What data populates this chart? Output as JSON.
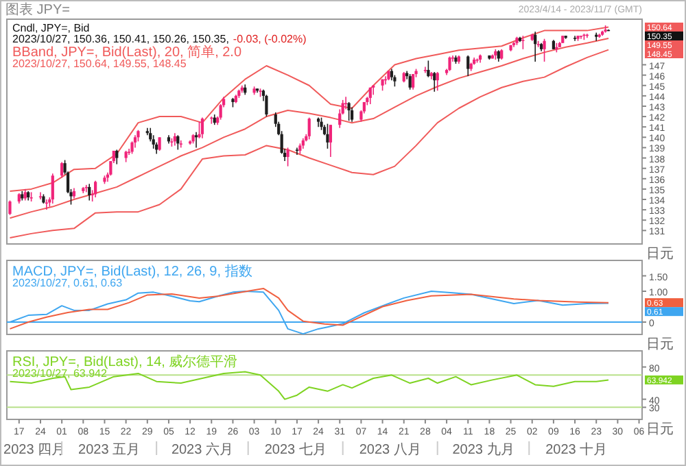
{
  "chart_data": [
    {
      "type": "candlestick",
      "title": "Cndl, JPY=, Bid",
      "subtitle": "2023/10/27, 150.36, 150.41, 150.26, 150.35,",
      "tick_labels": "y",
      "xlim": [
        "2023-04-13",
        "2023-11-07"
      ],
      "ylim": [
        129.7,
        151.4
      ],
      "yticks": [
        131,
        132,
        133,
        134,
        135,
        136,
        137,
        138,
        139,
        140,
        141,
        142,
        143,
        144,
        145,
        146,
        147
      ],
      "x": [
        "2023-04-14",
        "2023-04-17",
        "2023-04-18",
        "2023-04-19",
        "2023-04-20",
        "2023-04-21",
        "2023-04-24",
        "2023-04-25",
        "2023-04-26",
        "2023-04-27",
        "2023-04-28",
        "2023-05-01",
        "2023-05-02",
        "2023-05-03",
        "2023-05-04",
        "2023-05-05",
        "2023-05-08",
        "2023-05-09",
        "2023-05-10",
        "2023-05-11",
        "2023-05-12",
        "2023-05-15",
        "2023-05-16",
        "2023-05-17",
        "2023-05-18",
        "2023-05-19",
        "2023-05-22",
        "2023-05-23",
        "2023-05-24",
        "2023-05-25",
        "2023-05-26",
        "2023-05-29",
        "2023-05-30",
        "2023-05-31",
        "2023-06-01",
        "2023-06-02",
        "2023-06-05",
        "2023-06-06",
        "2023-06-07",
        "2023-06-08",
        "2023-06-09",
        "2023-06-12",
        "2023-06-13",
        "2023-06-14",
        "2023-06-15",
        "2023-06-16",
        "2023-06-19",
        "2023-06-20",
        "2023-06-21",
        "2023-06-22",
        "2023-06-23",
        "2023-06-26",
        "2023-06-27",
        "2023-06-28",
        "2023-06-29",
        "2023-06-30",
        "2023-07-03",
        "2023-07-04",
        "2023-07-05",
        "2023-07-06",
        "2023-07-07",
        "2023-07-10",
        "2023-07-11",
        "2023-07-12",
        "2023-07-13",
        "2023-07-14",
        "2023-07-17",
        "2023-07-18",
        "2023-07-19",
        "2023-07-20",
        "2023-07-21",
        "2023-07-24",
        "2023-07-25",
        "2023-07-26",
        "2023-07-27",
        "2023-07-28",
        "2023-07-31",
        "2023-08-01",
        "2023-08-02",
        "2023-08-03",
        "2023-08-04",
        "2023-08-07",
        "2023-08-08",
        "2023-08-09",
        "2023-08-10",
        "2023-08-11",
        "2023-08-14",
        "2023-08-15",
        "2023-08-16",
        "2023-08-17",
        "2023-08-18",
        "2023-08-21",
        "2023-08-22",
        "2023-08-23",
        "2023-08-24",
        "2023-08-25",
        "2023-08-28",
        "2023-08-29",
        "2023-08-30",
        "2023-08-31",
        "2023-09-01",
        "2023-09-04",
        "2023-09-05",
        "2023-09-06",
        "2023-09-07",
        "2023-09-08",
        "2023-09-11",
        "2023-09-12",
        "2023-09-13",
        "2023-09-14",
        "2023-09-15",
        "2023-09-18",
        "2023-09-19",
        "2023-09-20",
        "2023-09-21",
        "2023-09-22",
        "2023-09-25",
        "2023-09-26",
        "2023-09-27",
        "2023-09-28",
        "2023-09-29",
        "2023-10-02",
        "2023-10-03",
        "2023-10-04",
        "2023-10-05",
        "2023-10-06",
        "2023-10-09",
        "2023-10-10",
        "2023-10-11",
        "2023-10-12",
        "2023-10-13",
        "2023-10-16",
        "2023-10-17",
        "2023-10-18",
        "2023-10-19",
        "2023-10-20",
        "2023-10-23",
        "2023-10-24",
        "2023-10-25",
        "2023-10-26",
        "2023-10-27"
      ],
      "ohlc": [
        [
          132.6,
          133.9,
          132.5,
          133.8
        ],
        [
          133.8,
          134.6,
          133.6,
          134.5
        ],
        [
          134.5,
          134.8,
          133.9,
          134.1
        ],
        [
          134.1,
          135.0,
          133.9,
          134.7
        ],
        [
          134.7,
          134.8,
          133.9,
          134.2
        ],
        [
          134.2,
          134.7,
          133.8,
          134.2
        ],
        [
          134.2,
          134.7,
          134.0,
          134.3
        ],
        [
          134.3,
          134.5,
          133.6,
          133.7
        ],
        [
          133.7,
          134.0,
          133.0,
          133.7
        ],
        [
          133.7,
          134.2,
          133.3,
          134.0
        ],
        [
          134.0,
          136.5,
          133.6,
          136.3
        ],
        [
          136.3,
          137.6,
          136.1,
          137.5
        ],
        [
          137.5,
          137.8,
          136.4,
          136.6
        ],
        [
          136.6,
          136.7,
          134.6,
          134.7
        ],
        [
          134.7,
          135.0,
          133.5,
          134.3
        ],
        [
          134.3,
          135.1,
          134.1,
          134.8
        ],
        [
          134.8,
          135.2,
          134.6,
          135.1
        ],
        [
          135.1,
          135.4,
          134.7,
          135.2
        ],
        [
          135.2,
          135.5,
          133.9,
          134.4
        ],
        [
          134.4,
          134.9,
          133.8,
          134.5
        ],
        [
          134.5,
          135.8,
          134.2,
          135.7
        ],
        [
          135.7,
          136.3,
          135.5,
          136.1
        ],
        [
          136.1,
          136.6,
          135.7,
          136.4
        ],
        [
          136.4,
          137.7,
          136.3,
          137.7
        ],
        [
          137.7,
          138.7,
          137.5,
          138.7
        ],
        [
          138.7,
          138.8,
          137.4,
          138.0
        ],
        [
          138.0,
          138.7,
          137.6,
          138.6
        ],
        [
          138.6,
          138.9,
          138.3,
          138.6
        ],
        [
          138.6,
          139.6,
          138.4,
          139.5
        ],
        [
          139.5,
          140.2,
          139.0,
          140.0
        ],
        [
          140.0,
          140.7,
          139.6,
          140.6
        ],
        [
          140.6,
          140.9,
          140.2,
          140.4
        ],
        [
          140.4,
          140.9,
          139.6,
          139.8
        ],
        [
          139.8,
          140.2,
          138.9,
          139.3
        ],
        [
          139.3,
          139.5,
          138.4,
          138.8
        ],
        [
          138.8,
          140.0,
          138.7,
          140.0
        ],
        [
          140.0,
          140.2,
          139.4,
          139.6
        ],
        [
          139.6,
          139.9,
          139.1,
          139.6
        ],
        [
          139.6,
          140.4,
          139.2,
          140.1
        ],
        [
          140.1,
          140.2,
          138.8,
          139.4
        ],
        [
          139.4,
          139.7,
          139.0,
          139.4
        ],
        [
          139.4,
          139.7,
          139.3,
          139.6
        ],
        [
          139.6,
          140.3,
          139.4,
          140.2
        ],
        [
          140.2,
          140.5,
          139.0,
          140.0
        ],
        [
          140.0,
          141.5,
          139.9,
          140.3
        ],
        [
          140.3,
          141.9,
          139.9,
          141.8
        ],
        [
          141.8,
          142.0,
          141.3,
          141.9
        ],
        [
          141.9,
          142.2,
          141.2,
          141.4
        ],
        [
          141.4,
          142.0,
          141.2,
          141.9
        ],
        [
          141.9,
          143.2,
          141.7,
          143.1
        ],
        [
          143.1,
          143.9,
          142.9,
          143.7
        ],
        [
          143.7,
          143.8,
          142.9,
          143.4
        ],
        [
          143.4,
          144.1,
          143.3,
          144.0
        ],
        [
          144.0,
          144.6,
          143.8,
          144.5
        ],
        [
          144.5,
          145.0,
          144.3,
          144.8
        ],
        [
          144.8,
          145.1,
          144.1,
          144.3
        ],
        [
          144.3,
          144.9,
          144.1,
          144.7
        ],
        [
          144.7,
          144.7,
          144.3,
          144.5
        ],
        [
          144.5,
          144.7,
          143.9,
          144.5
        ],
        [
          144.5,
          144.6,
          143.5,
          144.0
        ],
        [
          144.0,
          144.1,
          142.0,
          142.2
        ],
        [
          142.2,
          142.4,
          141.0,
          141.3
        ],
        [
          141.3,
          141.5,
          140.2,
          140.3
        ],
        [
          140.3,
          140.6,
          138.4,
          138.5
        ],
        [
          138.5,
          138.9,
          137.7,
          138.1
        ],
        [
          138.1,
          139.0,
          137.2,
          138.8
        ],
        [
          138.8,
          139.0,
          138.3,
          138.7
        ],
        [
          138.7,
          139.4,
          138.4,
          139.2
        ],
        [
          139.2,
          139.9,
          138.9,
          139.7
        ],
        [
          139.7,
          140.3,
          139.6,
          140.1
        ],
        [
          140.1,
          141.9,
          139.8,
          141.8
        ],
        [
          141.8,
          141.9,
          141.0,
          141.5
        ],
        [
          141.5,
          141.9,
          140.7,
          141.0
        ],
        [
          141.0,
          141.2,
          140.2,
          140.3
        ],
        [
          140.3,
          141.3,
          138.9,
          139.5
        ],
        [
          139.5,
          141.2,
          138.1,
          141.2
        ],
        [
          141.2,
          142.7,
          140.9,
          142.3
        ],
        [
          142.3,
          143.6,
          142.2,
          143.3
        ],
        [
          143.3,
          143.9,
          142.7,
          143.3
        ],
        [
          143.3,
          143.4,
          141.6,
          142.6
        ],
        [
          142.6,
          142.9,
          141.5,
          141.7
        ],
        [
          141.7,
          142.6,
          141.5,
          142.5
        ],
        [
          142.5,
          143.4,
          142.3,
          143.4
        ],
        [
          143.4,
          143.9,
          143.1,
          143.8
        ],
        [
          143.8,
          144.8,
          143.2,
          144.8
        ],
        [
          144.8,
          145.0,
          144.1,
          145.0
        ],
        [
          145.0,
          145.6,
          144.5,
          145.6
        ],
        [
          145.6,
          145.9,
          145.1,
          145.6
        ],
        [
          145.6,
          146.4,
          145.5,
          146.4
        ],
        [
          146.4,
          146.6,
          145.5,
          145.8
        ],
        [
          145.8,
          146.0,
          144.9,
          145.4
        ],
        [
          145.4,
          146.3,
          145.3,
          146.2
        ],
        [
          146.2,
          146.4,
          145.6,
          145.9
        ],
        [
          145.9,
          146.1,
          144.6,
          144.8
        ],
        [
          144.8,
          146.1,
          144.6,
          146.1
        ],
        [
          146.1,
          146.6,
          145.8,
          146.4
        ],
        [
          146.4,
          146.8,
          146.2,
          146.5
        ],
        [
          146.5,
          147.4,
          145.8,
          145.9
        ],
        [
          145.9,
          146.3,
          145.6,
          146.2
        ],
        [
          146.2,
          146.3,
          144.4,
          145.5
        ],
        [
          145.5,
          146.3,
          144.5,
          146.2
        ],
        [
          146.2,
          146.6,
          146.0,
          146.5
        ],
        [
          146.5,
          147.8,
          146.4,
          147.7
        ],
        [
          147.7,
          147.9,
          147.3,
          147.7
        ],
        [
          147.7,
          147.9,
          147.1,
          147.3
        ],
        [
          147.3,
          147.9,
          147.1,
          147.8
        ],
        [
          147.8,
          147.9,
          145.9,
          146.6
        ],
        [
          146.6,
          147.2,
          146.4,
          147.1
        ],
        [
          147.1,
          147.7,
          147.0,
          147.5
        ],
        [
          147.5,
          147.6,
          147.2,
          147.5
        ],
        [
          147.5,
          148.0,
          147.2,
          147.9
        ],
        [
          147.9,
          147.9,
          147.5,
          147.6
        ],
        [
          147.6,
          148.0,
          147.6,
          147.9
        ],
        [
          147.9,
          148.5,
          147.5,
          148.3
        ],
        [
          148.3,
          148.4,
          147.3,
          147.6
        ],
        [
          147.6,
          148.5,
          147.5,
          148.4
        ],
        [
          148.4,
          148.9,
          148.3,
          148.9
        ],
        [
          148.9,
          149.2,
          148.7,
          149.1
        ],
        [
          149.1,
          149.7,
          148.9,
          149.6
        ],
        [
          149.6,
          149.7,
          149.2,
          149.3
        ],
        [
          149.3,
          149.8,
          148.5,
          149.4
        ],
        [
          149.4,
          150.0,
          149.3,
          149.9
        ],
        [
          149.9,
          150.2,
          147.3,
          149.0
        ],
        [
          149.0,
          149.3,
          148.7,
          149.0
        ],
        [
          149.0,
          149.1,
          148.3,
          148.5
        ],
        [
          148.5,
          149.5,
          147.3,
          149.3
        ],
        [
          149.3,
          149.4,
          148.5,
          148.5
        ],
        [
          148.5,
          149.1,
          148.2,
          148.7
        ],
        [
          148.7,
          149.2,
          148.7,
          149.1
        ],
        [
          149.1,
          149.8,
          149.1,
          149.8
        ],
        [
          149.8,
          149.8,
          149.5,
          149.6
        ],
        [
          149.6,
          149.8,
          149.3,
          149.5
        ],
        [
          149.5,
          149.8,
          149.3,
          149.8
        ],
        [
          149.8,
          149.8,
          149.5,
          149.8
        ],
        [
          149.8,
          150.0,
          149.4,
          149.9
        ],
        [
          149.9,
          150.0,
          149.6,
          149.9
        ],
        [
          149.9,
          150.1,
          149.3,
          149.7
        ],
        [
          149.7,
          150.0,
          149.6,
          149.9
        ],
        [
          149.9,
          150.3,
          149.8,
          150.2
        ],
        [
          150.2,
          150.8,
          150.1,
          150.4
        ],
        [
          150.36,
          150.41,
          150.26,
          150.35
        ]
      ],
      "series": [
        {
          "type": "line",
          "color": "#f05a5a",
          "x": [
            "2023-04-14",
            "2023-04-21",
            "2023-04-28",
            "2023-05-05",
            "2023-05-12",
            "2023-05-19",
            "2023-05-26",
            "2023-06-02",
            "2023-06-09",
            "2023-06-16",
            "2023-06-23",
            "2023-06-30",
            "2023-07-07",
            "2023-07-14",
            "2023-07-21",
            "2023-07-28",
            "2023-08-04",
            "2023-08-11",
            "2023-08-18",
            "2023-08-25",
            "2023-09-01",
            "2023-09-08",
            "2023-09-15",
            "2023-09-22",
            "2023-09-29",
            "2023-10-06",
            "2023-10-13",
            "2023-10-20",
            "2023-10-27"
          ],
          "values": [
            134.8,
            135.0,
            135.6,
            136.9,
            137.0,
            138.4,
            141.4,
            142.0,
            142.0,
            141.4,
            143.8,
            145.6,
            146.9,
            146.0,
            145.0,
            143.2,
            142.8,
            145.0,
            147.0,
            147.6,
            148.0,
            148.4,
            148.6,
            148.8,
            149.6,
            150.3,
            150.3,
            150.3,
            150.64
          ]
        },
        {
          "type": "line",
          "name": "BBand, JPY=, Bid(Last), 20, 简单, 2.0",
          "color": "#f05a5a",
          "x": [
            "2023-04-14",
            "2023-04-21",
            "2023-04-28",
            "2023-05-05",
            "2023-05-12",
            "2023-05-19",
            "2023-05-26",
            "2023-06-02",
            "2023-06-09",
            "2023-06-16",
            "2023-06-23",
            "2023-06-30",
            "2023-07-07",
            "2023-07-14",
            "2023-07-21",
            "2023-07-28",
            "2023-08-04",
            "2023-08-11",
            "2023-08-18",
            "2023-08-25",
            "2023-09-01",
            "2023-09-08",
            "2023-09-15",
            "2023-09-22",
            "2023-09-29",
            "2023-10-06",
            "2023-10-13",
            "2023-10-20",
            "2023-10-27"
          ],
          "values": [
            132.2,
            132.8,
            133.3,
            134.0,
            134.6,
            135.2,
            136.2,
            137.2,
            138.2,
            139.0,
            140.0,
            140.8,
            142.0,
            142.6,
            142.3,
            141.9,
            141.4,
            141.8,
            142.9,
            144.0,
            144.9,
            145.7,
            146.3,
            146.9,
            147.6,
            148.2,
            148.7,
            149.1,
            149.55
          ]
        },
        {
          "type": "line",
          "color": "#f05a5a",
          "x": [
            "2023-04-14",
            "2023-04-21",
            "2023-04-28",
            "2023-05-05",
            "2023-05-12",
            "2023-05-19",
            "2023-05-26",
            "2023-06-02",
            "2023-06-09",
            "2023-06-16",
            "2023-06-23",
            "2023-06-30",
            "2023-07-07",
            "2023-07-14",
            "2023-07-21",
            "2023-07-28",
            "2023-08-04",
            "2023-08-11",
            "2023-08-18",
            "2023-08-25",
            "2023-09-01",
            "2023-09-08",
            "2023-09-15",
            "2023-09-22",
            "2023-09-29",
            "2023-10-06",
            "2023-10-13",
            "2023-10-20",
            "2023-10-27"
          ],
          "values": [
            130.3,
            130.7,
            131.0,
            131.2,
            132.7,
            132.8,
            132.8,
            133.5,
            135.0,
            137.9,
            138.2,
            138.3,
            139.2,
            138.8,
            138.0,
            137.3,
            136.6,
            136.4,
            137.2,
            139.2,
            141.4,
            142.8,
            143.9,
            144.8,
            145.4,
            145.8,
            146.8,
            147.7,
            148.45
          ]
        }
      ],
      "annotations": [
        "图表 JPY=",
        "2023/4/14 - 2023/11/7 (GMT)",
        "-0.03, (-0.02%)",
        "2023/10/27, 150.64, 149.55, 148.45",
        "日元",
        "150.64",
        "150.35",
        "149.55",
        "148.45"
      ]
    },
    {
      "type": "line",
      "tick_labels": "y",
      "xlim": [
        "2023-04-13",
        "2023-11-07"
      ],
      "ylim": [
        -0.4,
        2.0
      ],
      "yticks": [
        {
          "value": 1.5,
          "label": "1.50"
        },
        {
          "value": 1,
          "label": "1.00"
        },
        0
      ],
      "series": [
        {
          "name": "MACD, JPY=, Bid(Last), 12, 26, 9, 指数",
          "color": "#3ea6f0",
          "x": [
            "2023-04-14",
            "2023-04-20",
            "2023-04-26",
            "2023-05-01",
            "2023-05-05",
            "2023-05-10",
            "2023-05-16",
            "2023-05-22",
            "2023-05-26",
            "2023-05-31",
            "2023-06-06",
            "2023-06-12",
            "2023-06-15",
            "2023-06-21",
            "2023-06-26",
            "2023-06-30",
            "2023-07-06",
            "2023-07-11",
            "2023-07-14",
            "2023-07-19",
            "2023-07-24",
            "2023-07-27",
            "2023-08-01",
            "2023-08-08",
            "2023-08-16",
            "2023-08-21",
            "2023-08-30",
            "2023-09-06",
            "2023-09-12",
            "2023-09-19",
            "2023-09-26",
            "2023-10-04",
            "2023-10-12",
            "2023-10-20",
            "2023-10-27"
          ],
          "values": [
            0.0,
            0.22,
            0.25,
            0.53,
            0.38,
            0.38,
            0.59,
            0.72,
            0.94,
            0.97,
            0.84,
            0.69,
            0.66,
            0.84,
            0.97,
            1.0,
            0.97,
            0.38,
            -0.22,
            -0.38,
            -0.22,
            -0.16,
            -0.05,
            0.3,
            0.6,
            0.78,
            1.0,
            0.95,
            0.9,
            0.75,
            0.6,
            0.7,
            0.55,
            0.6,
            0.61
          ]
        },
        {
          "color": "#f06040",
          "x": [
            "2023-04-14",
            "2023-04-20",
            "2023-04-26",
            "2023-05-03",
            "2023-05-10",
            "2023-05-16",
            "2023-05-23",
            "2023-05-29",
            "2023-06-06",
            "2023-06-15",
            "2023-06-21",
            "2023-06-29",
            "2023-07-06",
            "2023-07-11",
            "2023-07-14",
            "2023-07-19",
            "2023-07-26",
            "2023-08-01",
            "2023-08-14",
            "2023-08-22",
            "2023-08-30",
            "2023-09-12",
            "2023-09-26",
            "2023-10-04",
            "2023-10-17",
            "2023-10-27"
          ],
          "values": [
            -0.22,
            0.0,
            0.16,
            0.31,
            0.41,
            0.41,
            0.63,
            0.88,
            0.91,
            0.78,
            0.84,
            0.97,
            1.09,
            0.78,
            0.38,
            0.03,
            -0.06,
            -0.1,
            0.5,
            0.7,
            0.85,
            0.9,
            0.75,
            0.7,
            0.65,
            0.63
          ]
        }
      ],
      "ref_lines": [
        {
          "axis": "y",
          "value": 0,
          "color": "#3ea6f0"
        }
      ],
      "annotations": [
        "2023/10/27, 0.61, 0.63",
        "日元",
        "0.63",
        "0.61"
      ]
    },
    {
      "type": "line",
      "xlim": [
        "2023-04-13",
        "2023-11-07"
      ],
      "ylim": [
        15,
        100
      ],
      "yticks": [
        30,
        40,
        80
      ],
      "xticks": [
        {
          "value": "2023-04-17",
          "label": "17"
        },
        {
          "value": "2023-04-24",
          "label": "24"
        },
        {
          "value": "2023-05-01",
          "label": "01"
        },
        {
          "value": "2023-05-08",
          "label": "08"
        },
        {
          "value": "2023-05-15",
          "label": "15"
        },
        {
          "value": "2023-05-22",
          "label": "22"
        },
        {
          "value": "2023-05-29",
          "label": "29"
        },
        {
          "value": "2023-06-05",
          "label": "05"
        },
        {
          "value": "2023-06-12",
          "label": "12"
        },
        {
          "value": "2023-06-19",
          "label": "19"
        },
        {
          "value": "2023-06-26",
          "label": "26"
        },
        {
          "value": "2023-07-03",
          "label": "03"
        },
        {
          "value": "2023-07-10",
          "label": "10"
        },
        {
          "value": "2023-07-17",
          "label": "17"
        },
        {
          "value": "2023-07-24",
          "label": "24"
        },
        {
          "value": "2023-07-31",
          "label": "31"
        },
        {
          "value": "2023-08-07",
          "label": "07"
        },
        {
          "value": "2023-08-14",
          "label": "14"
        },
        {
          "value": "2023-08-21",
          "label": "21"
        },
        {
          "value": "2023-08-28",
          "label": "28"
        },
        {
          "value": "2023-09-04",
          "label": "04"
        },
        {
          "value": "2023-09-11",
          "label": "11"
        },
        {
          "value": "2023-09-18",
          "label": "18"
        },
        {
          "value": "2023-09-25",
          "label": "25"
        },
        {
          "value": "2023-10-02",
          "label": "02"
        },
        {
          "value": "2023-10-09",
          "label": "09"
        },
        {
          "value": "2023-10-16",
          "label": "16"
        },
        {
          "value": "2023-10-23",
          "label": "23"
        },
        {
          "value": "2023-10-30",
          "label": "30"
        },
        {
          "value": "2023-11-06",
          "label": "06"
        }
      ],
      "series": [
        {
          "name": "RSI, JPY=, Bid(Last), 14, 威尔德平滑",
          "color": "#7ed321",
          "x": [
            "2023-04-14",
            "2023-04-21",
            "2023-04-28",
            "2023-05-02",
            "2023-05-04",
            "2023-05-10",
            "2023-05-18",
            "2023-05-26",
            "2023-06-01",
            "2023-06-09",
            "2023-06-16",
            "2023-06-23",
            "2023-06-30",
            "2023-07-05",
            "2023-07-11",
            "2023-07-13",
            "2023-07-17",
            "2023-07-21",
            "2023-07-27",
            "2023-08-01",
            "2023-08-04",
            "2023-08-11",
            "2023-08-17",
            "2023-08-23",
            "2023-08-29",
            "2023-09-01",
            "2023-09-07",
            "2023-09-12",
            "2023-09-19",
            "2023-09-27",
            "2023-10-03",
            "2023-10-09",
            "2023-10-16",
            "2023-10-23",
            "2023-10-27"
          ],
          "values": [
            62,
            60,
            66,
            68,
            52,
            55,
            68,
            72,
            62,
            60,
            66,
            72,
            74,
            70,
            50,
            40,
            45,
            55,
            50,
            58,
            54,
            66,
            70,
            60,
            66,
            60,
            68,
            58,
            64,
            70,
            58,
            56,
            62,
            62,
            63.942
          ]
        }
      ],
      "ref_lines": [
        {
          "axis": "y",
          "value": 70,
          "color": "#b8e08a"
        },
        {
          "axis": "y",
          "value": 30,
          "color": "#b8e08a"
        }
      ],
      "annotations": [
        "2023/10/27, 63.942",
        "日元",
        "63.942",
        "2023 四月",
        "2023 五月",
        "2023 六月",
        "2023 七月",
        "2023 八月",
        "2023 九月",
        "2023 十月"
      ]
    }
  ]
}
